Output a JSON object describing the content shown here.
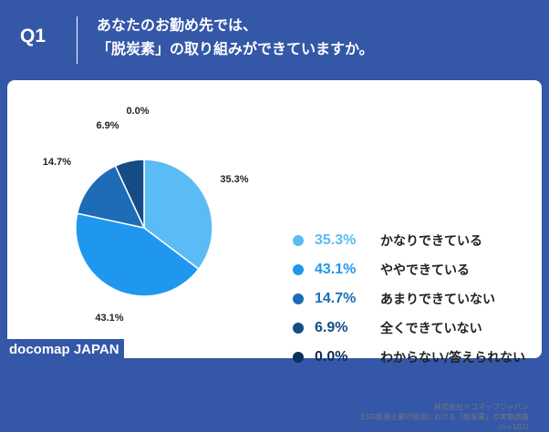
{
  "header": {
    "q_label": "Q1",
    "title_line1": "あなたのお勤め先では、",
    "title_line2": "「脱炭素」の取り組みができていますか。"
  },
  "chart_data": {
    "type": "pie",
    "start": "12 o'clock, clockwise",
    "slices": [
      {
        "label": "かなりできている",
        "value": 35.3,
        "display": "35.3%",
        "color": "#5bbcf5"
      },
      {
        "label": "ややできている",
        "value": 43.1,
        "display": "43.1%",
        "color": "#1f97ee"
      },
      {
        "label": "あまりできていない",
        "value": 14.7,
        "display": "14.7%",
        "color": "#1e6bb8"
      },
      {
        "label": "全くできていない",
        "value": 6.9,
        "display": "6.9%",
        "color": "#154c86"
      },
      {
        "label": "わからない/答えられない",
        "value": 0.0,
        "display": "0.0%",
        "color": "#0c2e5c"
      }
    ]
  },
  "source": {
    "line1": "株式会社ドコマップジャパン",
    "line2": "ESG推進企業の物流における「脱炭素」の実態調査",
    "line3": "(n=102)"
  },
  "brand": "docomap JAPAN"
}
